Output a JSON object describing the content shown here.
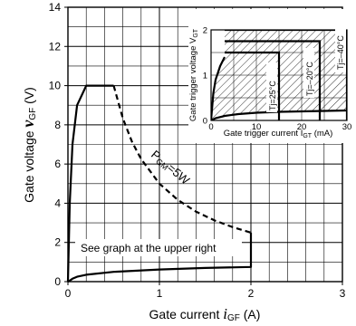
{
  "chart_data": [
    {
      "type": "line",
      "xlabel_text": "Gate current ",
      "xlabel_sym": "i",
      "xlabel_sub": "GF",
      "xlabel_unit": " (A)",
      "ylabel_text": "Gate voltage ",
      "ylabel_sym": "v",
      "ylabel_sub": "GF",
      "ylabel_unit": " (V)",
      "xlim": [
        0,
        3
      ],
      "ylim": [
        0,
        14
      ],
      "xticks": [
        "0",
        "1",
        "2",
        "3"
      ],
      "yticks": [
        "0",
        "2",
        "4",
        "6",
        "8",
        "10",
        "12",
        "14"
      ],
      "grid": true,
      "series": [
        {
          "role": "upper-limit",
          "x": [
            0.0,
            0.02,
            0.05,
            0.1,
            0.2,
            0.5
          ],
          "y": [
            0.0,
            4.0,
            7.0,
            9.0,
            10.0,
            10.0
          ]
        },
        {
          "role": "lower-limit",
          "x": [
            0.0,
            0.02,
            0.05,
            0.1,
            0.2,
            0.5,
            1.0,
            1.5,
            2.0,
            2.0
          ],
          "y": [
            0.0,
            0.05,
            0.15,
            0.25,
            0.35,
            0.5,
            0.62,
            0.7,
            0.75,
            2.5
          ]
        },
        {
          "role": "power-limit",
          "name": "P GM=5W",
          "dashed": true,
          "x": [
            0.5,
            0.6,
            0.7,
            0.8,
            1.0,
            1.2,
            1.4,
            1.6,
            1.8,
            2.0
          ],
          "y": [
            10.0,
            8.33,
            7.14,
            6.25,
            5.0,
            4.17,
            3.57,
            3.13,
            2.78,
            2.5
          ]
        }
      ],
      "annotations": {
        "power_label_main": "P",
        "power_label_sub": "GM",
        "power_label_rest": "=5W",
        "note": "See graph at the upper right"
      }
    },
    {
      "type": "area",
      "inset": true,
      "xlabel_text": "Gate trigger current  I",
      "xlabel_sub": "GT",
      "xlabel_unit": " (mA)",
      "ylabel_text": "Gate trigger voltage  V",
      "ylabel_sub": "GT",
      "xlim": [
        0,
        30
      ],
      "ylim": [
        0,
        2
      ],
      "xticks": [
        "0",
        "10",
        "20",
        "30"
      ],
      "yticks": [
        "0",
        "1",
        "2"
      ],
      "grid": true,
      "regions": [
        {
          "label": "Tj=25°C",
          "igt_max": 15,
          "vgt_max": 1.5
        },
        {
          "label": "Tj=–20°C",
          "igt_max": 24,
          "vgt_max": 1.75
        },
        {
          "label": "Tj=–40°C",
          "igt_max": 30,
          "vgt_max": 2.0
        }
      ],
      "lower_curve": {
        "x": [
          0,
          1,
          3,
          6,
          10,
          15,
          20,
          25,
          30
        ],
        "y": [
          0,
          0.05,
          0.1,
          0.14,
          0.17,
          0.19,
          0.2,
          0.21,
          0.22
        ]
      },
      "upper_curve": {
        "x": [
          0,
          0.5,
          1,
          2,
          3
        ],
        "y": [
          0,
          0.6,
          0.9,
          1.2,
          1.4
        ]
      }
    }
  ]
}
